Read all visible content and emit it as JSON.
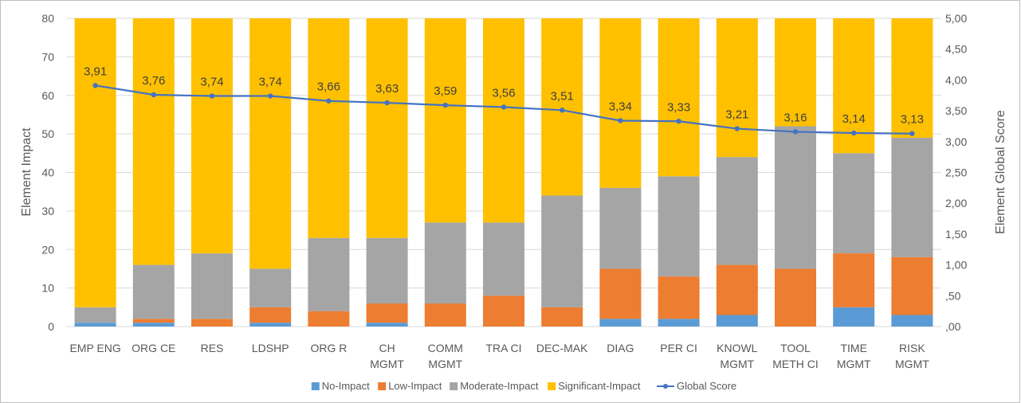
{
  "chart_data": {
    "type": "bar",
    "stacked": true,
    "categories": [
      [
        "EMP ENG"
      ],
      [
        "ORG CE"
      ],
      [
        "RES"
      ],
      [
        "LDSHP"
      ],
      [
        "ORG R"
      ],
      [
        "CH",
        "MGMT"
      ],
      [
        "COMM",
        "MGMT"
      ],
      [
        "TRA CI"
      ],
      [
        "DEC-MAK"
      ],
      [
        "DIAG"
      ],
      [
        "PER CI"
      ],
      [
        "KNOWL",
        "MGMT"
      ],
      [
        "TOOL",
        "METH CI"
      ],
      [
        "TIME",
        "MGMT"
      ],
      [
        "RISK",
        "MGMT"
      ]
    ],
    "series": [
      {
        "name": "No-Impact",
        "color": "#5b9bd5",
        "values": [
          1,
          1,
          0,
          1,
          0,
          1,
          0,
          0,
          0,
          2,
          2,
          3,
          0,
          5,
          3
        ]
      },
      {
        "name": "Low-Impact",
        "color": "#ed7d31",
        "values": [
          0,
          1,
          2,
          4,
          4,
          5,
          6,
          8,
          5,
          13,
          11,
          13,
          15,
          14,
          15
        ]
      },
      {
        "name": "Moderate-Impact",
        "color": "#a5a5a5",
        "values": [
          4,
          14,
          17,
          10,
          19,
          17,
          21,
          19,
          29,
          21,
          26,
          28,
          37,
          26,
          31
        ]
      },
      {
        "name": "Significant-Impact",
        "color": "#ffc000",
        "values": [
          75,
          64,
          61,
          65,
          57,
          57,
          53,
          53,
          46,
          44,
          41,
          36,
          28,
          35,
          31
        ]
      }
    ],
    "line": {
      "name": "Global Score",
      "color": "#4472c4",
      "axis": "secondary",
      "values": [
        3.91,
        3.76,
        3.74,
        3.74,
        3.66,
        3.63,
        3.59,
        3.56,
        3.51,
        3.34,
        3.33,
        3.21,
        3.16,
        3.14,
        3.13
      ],
      "labels": [
        "3,91",
        "3,76",
        "3,74",
        "3,74",
        "3,66",
        "3,63",
        "3,59",
        "3,56",
        "3,51",
        "3,34",
        "3,33",
        "3,21",
        "3,16",
        "3,14",
        "3,13"
      ]
    },
    "ylabel": "Element Impact",
    "y2label": "Element Global Score",
    "ylim": [
      0,
      80
    ],
    "y2lim": [
      0,
      5
    ],
    "yticks": [
      "0",
      "10",
      "20",
      "30",
      "40",
      "50",
      "60",
      "70",
      "80"
    ],
    "y2ticks": [
      ",00",
      ",50",
      "1,00",
      "1,50",
      "2,00",
      "2,50",
      "3,00",
      "3,50",
      "4,00",
      "4,50",
      "5,00"
    ],
    "grid": true,
    "legend": "bottom"
  }
}
